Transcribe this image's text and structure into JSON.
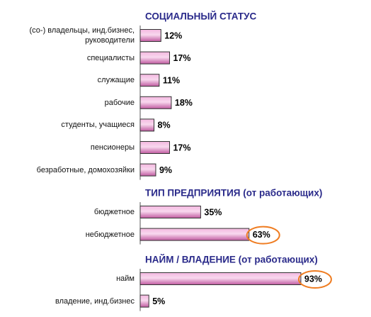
{
  "chart_data": [
    {
      "type": "bar",
      "title": "СОЦИАЛЬНЫЙ СТАТУС",
      "categories": [
        "(со-) владельцы, инд.бизнес, руководители",
        "специалисты",
        "служащие",
        "рабочие",
        "студенты, учащиеся",
        "пенсионеры",
        "безработные, домохозяйки"
      ],
      "values": [
        12,
        17,
        11,
        18,
        8,
        17,
        9
      ],
      "value_labels": [
        "12%",
        "17%",
        "11%",
        "18%",
        "8%",
        "17%",
        "9%"
      ],
      "highlighted": [
        false,
        false,
        false,
        false,
        false,
        false,
        false
      ],
      "color": "#e87fc0"
    },
    {
      "type": "bar",
      "title": "ТИП ПРЕДПРИЯТИЯ (от работающих)",
      "categories": [
        "бюджетное",
        "небюджетное"
      ],
      "values": [
        35,
        63
      ],
      "value_labels": [
        "35%",
        "63%"
      ],
      "highlighted": [
        false,
        true
      ],
      "color": "#e87fc0"
    },
    {
      "type": "bar",
      "title": "НАЙМ / ВЛАДЕНИЕ (от работающих)",
      "categories": [
        "найм",
        "владение, инд.бизнес"
      ],
      "values": [
        93,
        5
      ],
      "value_labels": [
        "93%",
        "5%"
      ],
      "highlighted": [
        true,
        false
      ],
      "color": "#e87fc0"
    }
  ]
}
